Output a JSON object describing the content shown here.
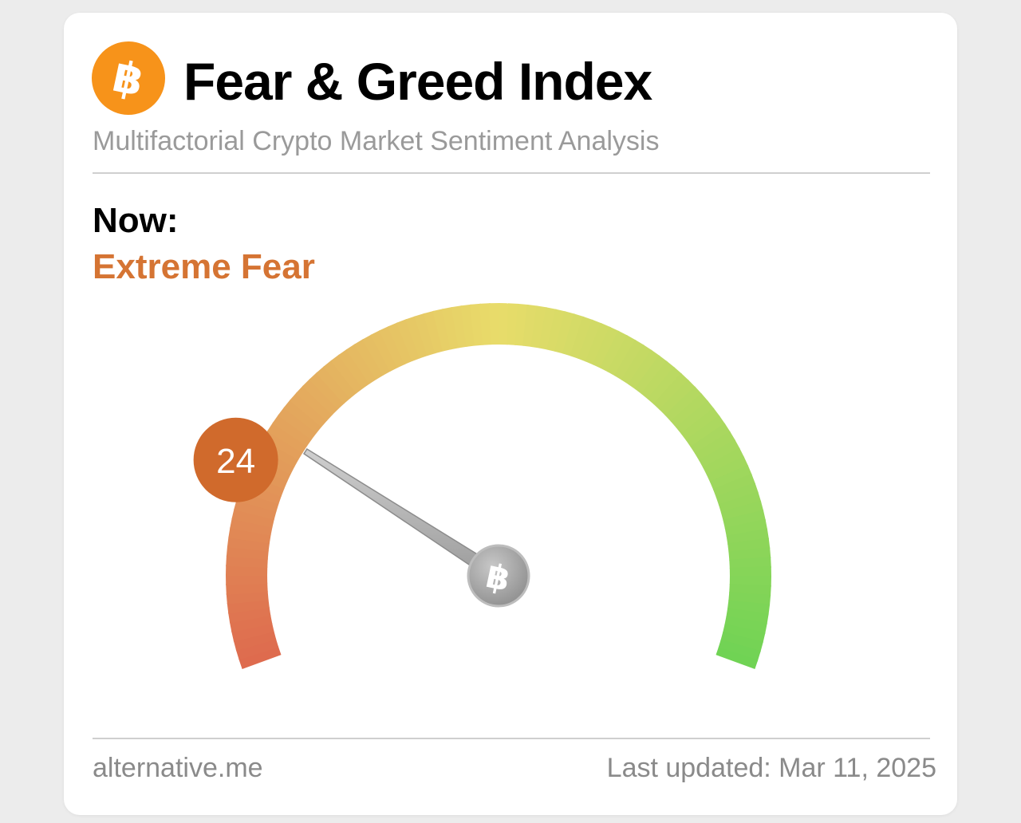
{
  "header": {
    "logo_icon": "bitcoin-icon",
    "logo_symbol": "฿",
    "title": "Fear & Greed Index",
    "subtitle": "Multifactorial Crypto Market Sentiment Analysis"
  },
  "current": {
    "label": "Now:",
    "classification": "Extreme Fear",
    "value": "24",
    "value_numeric": 24,
    "scale_min": 0,
    "scale_max": 100
  },
  "gauge": {
    "hub_icon": "bitcoin-icon",
    "hub_symbol": "฿",
    "colors": {
      "fear": "#de6a4e",
      "neutral": "#e8dc6a",
      "greed": "#6fd354",
      "badge": "#d06a2c",
      "classification_text": "#d57433"
    }
  },
  "footer": {
    "source": "alternative.me",
    "last_updated": "Last updated: Mar 11, 2025"
  }
}
